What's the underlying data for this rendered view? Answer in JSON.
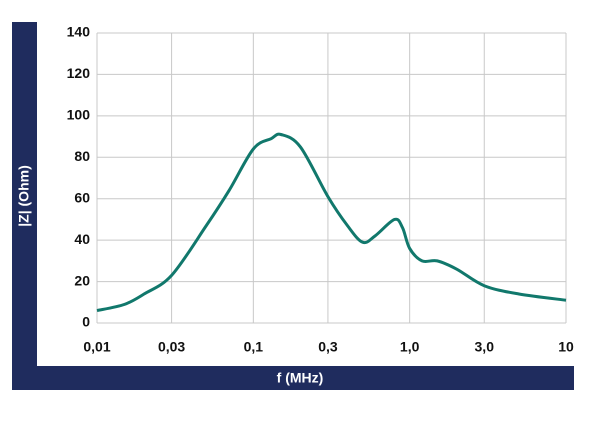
{
  "chart_data": {
    "type": "line",
    "y_label": "|Z| (Ohm)",
    "x_label": "f (MHz)",
    "x_scale": "log",
    "grid": true,
    "x": [
      0.01,
      0.015,
      0.02,
      0.03,
      0.05,
      0.07,
      0.1,
      0.13,
      0.15,
      0.2,
      0.3,
      0.4,
      0.5,
      0.6,
      0.8,
      0.9,
      1.0,
      1.2,
      1.5,
      2,
      3,
      5,
      10
    ],
    "series": [
      {
        "color": "#11786c",
        "values": [
          6,
          9,
          14,
          23,
          47,
          64,
          84,
          89,
          91,
          85,
          61,
          47,
          39,
          42,
          50,
          46,
          36,
          30,
          30,
          26,
          18,
          14,
          11
        ]
      }
    ],
    "xlim": [
      0.01,
      10
    ],
    "xticks": [
      {
        "value": 0.01,
        "label": "0,01"
      },
      {
        "value": 0.03,
        "label": "0,03"
      },
      {
        "value": 0.1,
        "label": "0,1"
      },
      {
        "value": 0.3,
        "label": "0,3"
      },
      {
        "value": 1,
        "label": "1,0"
      },
      {
        "value": 3,
        "label": "3,0"
      },
      10
    ],
    "ylim": [
      0,
      140
    ],
    "yticks": [
      0,
      20,
      40,
      60,
      80,
      100,
      120,
      140
    ]
  }
}
